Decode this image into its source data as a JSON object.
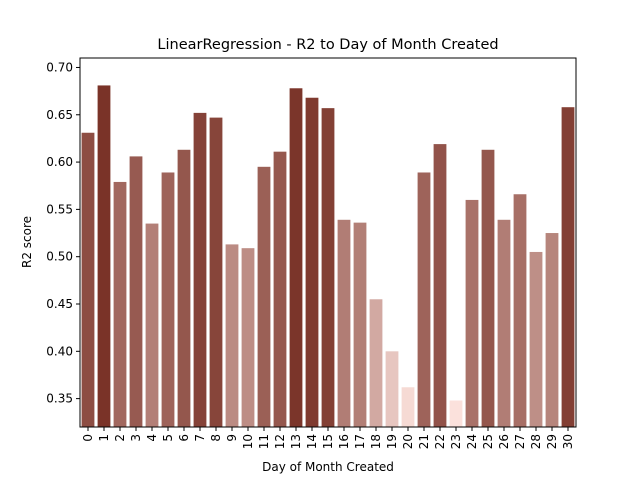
{
  "chart_data": {
    "type": "bar",
    "title": "LinearRegression - R2 to Day of Month Created",
    "xlabel": "Day of Month Created",
    "ylabel": "R2 score",
    "categories": [
      "0",
      "1",
      "2",
      "3",
      "4",
      "5",
      "6",
      "7",
      "8",
      "9",
      "10",
      "11",
      "12",
      "13",
      "14",
      "15",
      "16",
      "17",
      "18",
      "19",
      "20",
      "21",
      "22",
      "23",
      "24",
      "25",
      "26",
      "27",
      "28",
      "29",
      "30"
    ],
    "values": [
      0.631,
      0.681,
      0.579,
      0.606,
      0.535,
      0.589,
      0.613,
      0.652,
      0.647,
      0.513,
      0.509,
      0.595,
      0.611,
      0.678,
      0.668,
      0.657,
      0.539,
      0.536,
      0.455,
      0.4,
      0.362,
      0.589,
      0.619,
      0.348,
      0.56,
      0.613,
      0.539,
      0.566,
      0.505,
      0.525,
      0.658
    ],
    "ylim": [
      0.32,
      0.71
    ],
    "yticks": [
      "0.35",
      "0.40",
      "0.45",
      "0.50",
      "0.55",
      "0.60",
      "0.65",
      "0.70"
    ],
    "grid": false,
    "legend": "none",
    "color_scale": {
      "low": "#fbe1dc",
      "high": "#7a3328"
    }
  }
}
